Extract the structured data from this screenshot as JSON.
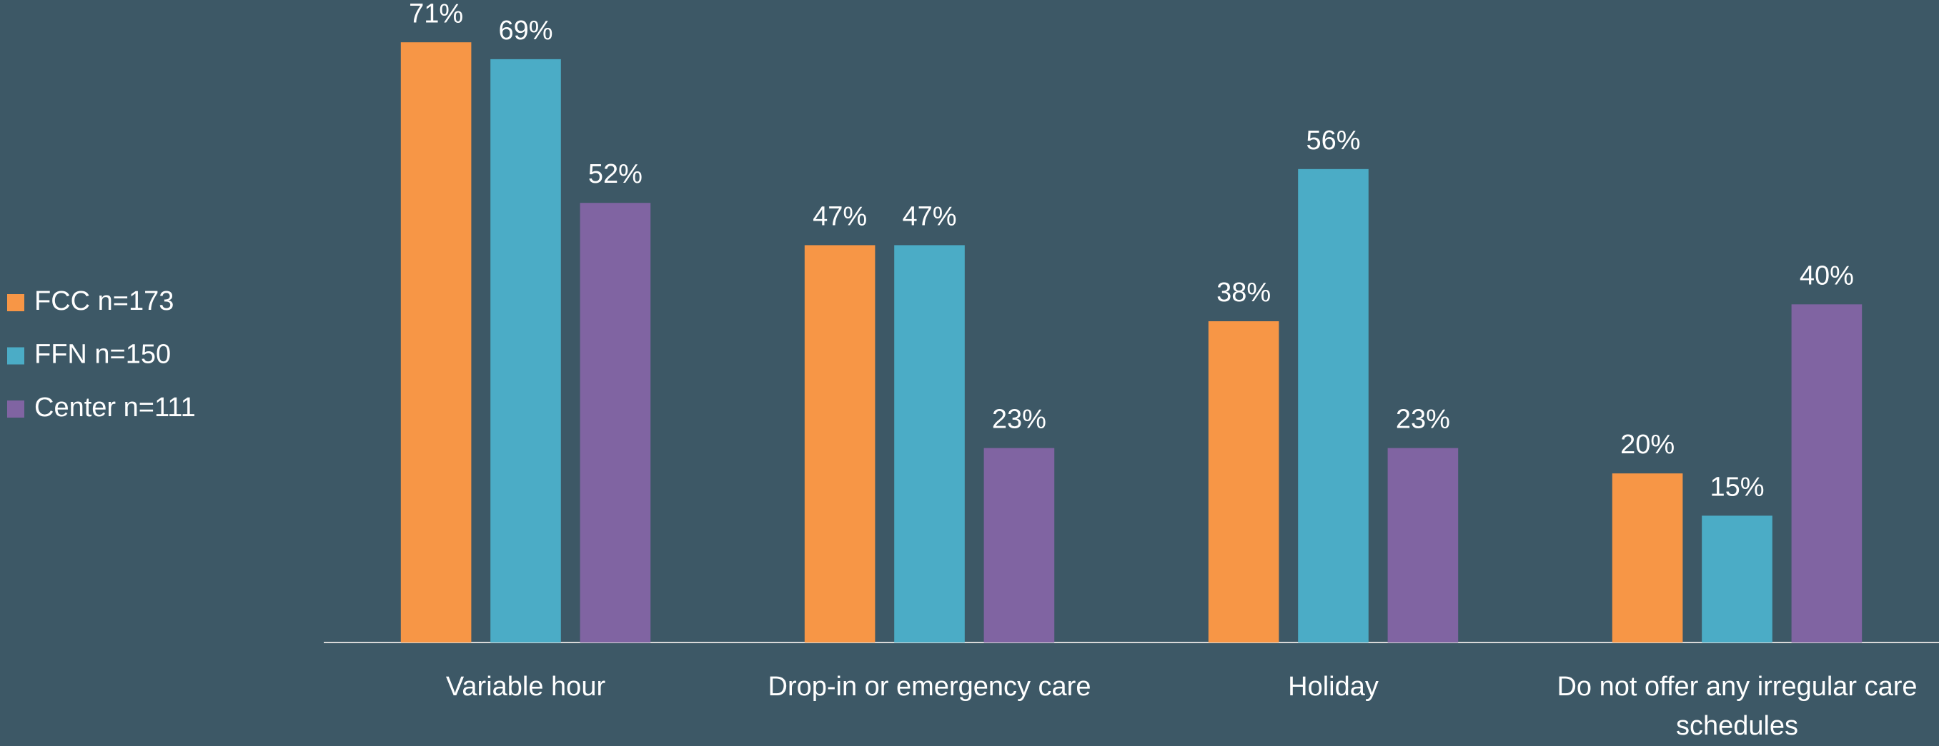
{
  "chart_data": {
    "type": "bar",
    "categories": [
      "Variable hour",
      "Drop-in or emergency care",
      "Holiday",
      "Do not offer any irregular care schedules"
    ],
    "series": [
      {
        "name": "FCC n=173",
        "color": "#f79646",
        "values": [
          71,
          47,
          38,
          20
        ],
        "value_labels": [
          "71%",
          "47%",
          "38%",
          "20%"
        ]
      },
      {
        "name": "FFN n=150",
        "color": "#4bacc6",
        "values": [
          69,
          47,
          56,
          15
        ],
        "value_labels": [
          "69%",
          "47%",
          "56%",
          "15%"
        ]
      },
      {
        "name": "Center n=111",
        "color": "#8064a2",
        "values": [
          52,
          23,
          23,
          40
        ],
        "value_labels": [
          "52%",
          "23%",
          "23%",
          "40%"
        ]
      }
    ],
    "ylim": [
      0,
      76
    ],
    "legend": "left"
  }
}
